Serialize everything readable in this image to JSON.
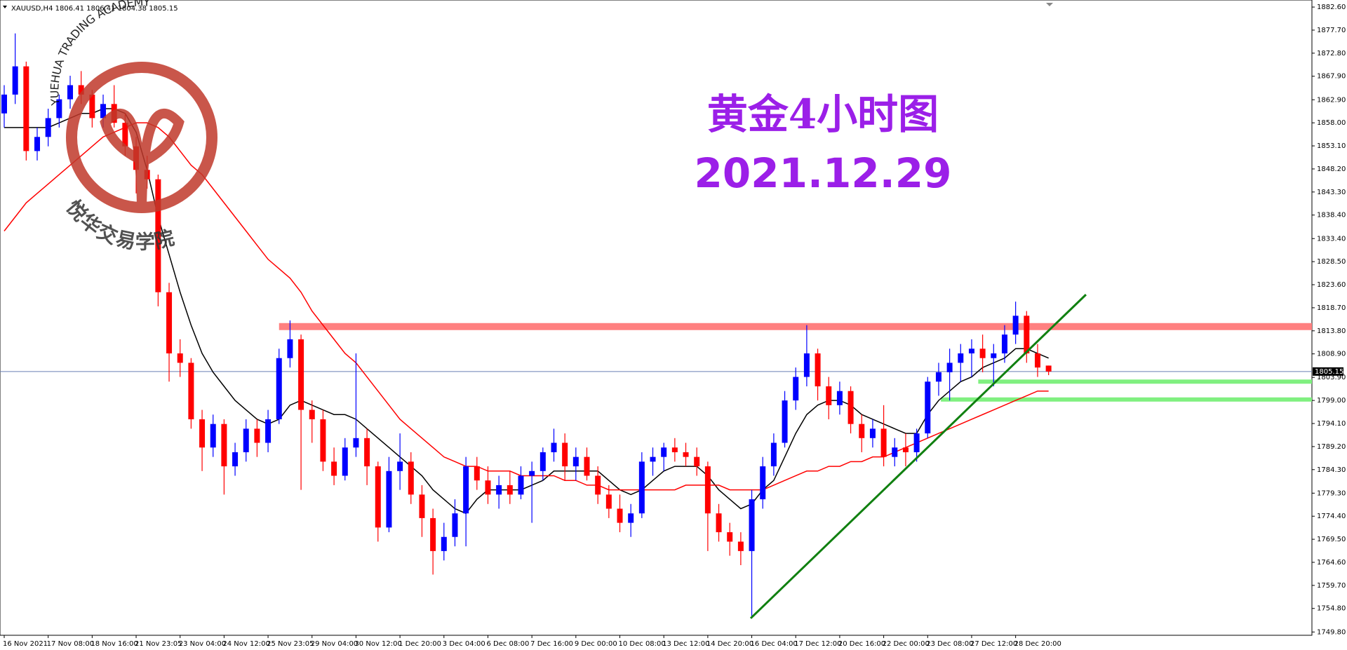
{
  "chart_data": {
    "type": "candlestick",
    "title": "XAUUSD,H4  1806.41 1806.41 1804.38 1805.15",
    "annotations": [
      "黄金4小时图",
      "2021.12.29"
    ],
    "watermark": [
      "YUEHUA TRADING ACADEMY",
      "悦华交易学院"
    ],
    "categories": [
      "16 Nov 2021",
      null,
      null,
      null,
      "17 Nov 08:00",
      null,
      null,
      null,
      "18 Nov 16:00",
      null,
      null,
      null,
      "21 Nov 23:05",
      null,
      null,
      null,
      "23 Nov 04:00",
      null,
      null,
      null,
      "24 Nov 12:00",
      null,
      null,
      null,
      "25 Nov 23:05",
      null,
      null,
      null,
      "29 Nov 04:00",
      null,
      null,
      null,
      "30 Nov 12:00",
      null,
      null,
      null,
      "1 Dec 20:00",
      null,
      null,
      null,
      "3 Dec 04:00",
      null,
      null,
      null,
      "6 Dec 08:00",
      null,
      null,
      null,
      "7 Dec 16:00",
      null,
      null,
      null,
      "9 Dec 00:00",
      null,
      null,
      null,
      "10 Dec 08:00",
      null,
      null,
      null,
      "13 Dec 12:00",
      null,
      null,
      null,
      "14 Dec 20:00",
      null,
      null,
      null,
      "16 Dec 04:00",
      null,
      null,
      null,
      "17 Dec 12:00",
      null,
      null,
      null,
      "20 Dec 16:00",
      null,
      null,
      null,
      "22 Dec 00:00",
      null,
      null,
      null,
      "23 Dec 08:00",
      null,
      null,
      null,
      "27 Dec 12:00",
      null,
      null,
      null,
      "28 Dec 20:00",
      null,
      null,
      null
    ],
    "ohlc": [
      [
        1860,
        1866,
        1857,
        1864
      ],
      [
        1864,
        1877,
        1862,
        1870
      ],
      [
        1870,
        1871,
        1850,
        1852
      ],
      [
        1852,
        1857,
        1850,
        1855
      ],
      [
        1855,
        1861,
        1853,
        1859
      ],
      [
        1859,
        1864,
        1857,
        1863
      ],
      [
        1863,
        1868,
        1861,
        1866
      ],
      [
        1866,
        1869,
        1862,
        1864
      ],
      [
        1864,
        1865,
        1857,
        1859
      ],
      [
        1859,
        1864,
        1857,
        1862
      ],
      [
        1862,
        1866,
        1857,
        1858
      ],
      [
        1858,
        1860,
        1851,
        1853
      ],
      [
        1853,
        1855,
        1843,
        1848
      ],
      [
        1848,
        1851,
        1844,
        1846
      ],
      [
        1846,
        1847,
        1819,
        1822
      ],
      [
        1822,
        1824,
        1803,
        1809
      ],
      [
        1809,
        1812,
        1804,
        1807
      ],
      [
        1807,
        1808,
        1793,
        1795
      ],
      [
        1795,
        1797,
        1784,
        1789
      ],
      [
        1789,
        1796,
        1787,
        1794
      ],
      [
        1794,
        1795,
        1779,
        1785
      ],
      [
        1785,
        1790,
        1783,
        1788
      ],
      [
        1788,
        1795,
        1786,
        1793
      ],
      [
        1793,
        1795,
        1787,
        1790
      ],
      [
        1790,
        1797,
        1788,
        1795
      ],
      [
        1795,
        1810,
        1794,
        1808
      ],
      [
        1808,
        1816,
        1806,
        1812
      ],
      [
        1812,
        1813,
        1780,
        1797
      ],
      [
        1797,
        1799,
        1790,
        1795
      ],
      [
        1795,
        1797,
        1784,
        1786
      ],
      [
        1786,
        1789,
        1781,
        1783
      ],
      [
        1783,
        1791,
        1782,
        1789
      ],
      [
        1789,
        1809,
        1787,
        1791
      ],
      [
        1791,
        1793,
        1781,
        1785
      ],
      [
        1785,
        1786,
        1769,
        1772
      ],
      [
        1772,
        1787,
        1771,
        1784
      ],
      [
        1784,
        1792,
        1780,
        1786
      ],
      [
        1786,
        1788,
        1777,
        1779
      ],
      [
        1779,
        1781,
        1770,
        1774
      ],
      [
        1774,
        1776,
        1762,
        1767
      ],
      [
        1767,
        1773,
        1765,
        1770
      ],
      [
        1770,
        1778,
        1768,
        1775
      ],
      [
        1775,
        1787,
        1768,
        1785
      ],
      [
        1785,
        1787,
        1780,
        1782
      ],
      [
        1782,
        1785,
        1777,
        1779
      ],
      [
        1779,
        1783,
        1776,
        1781
      ],
      [
        1781,
        1784,
        1777,
        1779
      ],
      [
        1779,
        1785,
        1778,
        1783
      ],
      [
        1783,
        1786,
        1773,
        1784
      ],
      [
        1784,
        1789,
        1782,
        1788
      ],
      [
        1788,
        1793,
        1786,
        1790
      ],
      [
        1790,
        1792,
        1782,
        1785
      ],
      [
        1785,
        1789,
        1782,
        1787
      ],
      [
        1787,
        1789,
        1782,
        1783
      ],
      [
        1783,
        1785,
        1777,
        1779
      ],
      [
        1779,
        1781,
        1774,
        1776
      ],
      [
        1776,
        1779,
        1771,
        1773
      ],
      [
        1773,
        1777,
        1770,
        1775
      ],
      [
        1775,
        1788,
        1774,
        1786
      ],
      [
        1786,
        1789,
        1783,
        1787
      ],
      [
        1787,
        1790,
        1784,
        1789
      ],
      [
        1789,
        1791,
        1786,
        1788
      ],
      [
        1788,
        1790,
        1785,
        1787
      ],
      [
        1787,
        1789,
        1783,
        1785
      ],
      [
        1785,
        1786,
        1767,
        1775
      ],
      [
        1775,
        1777,
        1769,
        1771
      ],
      [
        1771,
        1773,
        1766,
        1769
      ],
      [
        1769,
        1771,
        1764,
        1767
      ],
      [
        1767,
        1780,
        1753,
        1778
      ],
      [
        1778,
        1787,
        1776,
        1785
      ],
      [
        1785,
        1792,
        1783,
        1790
      ],
      [
        1790,
        1801,
        1789,
        1799
      ],
      [
        1799,
        1806,
        1797,
        1804
      ],
      [
        1804,
        1815,
        1802,
        1809
      ],
      [
        1809,
        1810,
        1799,
        1802
      ],
      [
        1802,
        1804,
        1795,
        1798
      ],
      [
        1798,
        1803,
        1796,
        1801
      ],
      [
        1801,
        1802,
        1792,
        1794
      ],
      [
        1794,
        1796,
        1788,
        1791
      ],
      [
        1791,
        1795,
        1789,
        1793
      ],
      [
        1793,
        1798,
        1785,
        1787
      ],
      [
        1787,
        1791,
        1785,
        1789
      ],
      [
        1789,
        1792,
        1785,
        1788
      ],
      [
        1788,
        1793,
        1786,
        1792
      ],
      [
        1792,
        1804,
        1791,
        1803
      ],
      [
        1803,
        1807,
        1800,
        1805
      ],
      [
        1805,
        1810,
        1799,
        1807
      ],
      [
        1807,
        1811,
        1803,
        1809
      ],
      [
        1809,
        1812,
        1804,
        1810
      ],
      [
        1810,
        1813,
        1805,
        1808
      ],
      [
        1808,
        1811,
        1802,
        1809
      ],
      [
        1809,
        1815,
        1807,
        1813
      ],
      [
        1813,
        1820,
        1811,
        1817
      ],
      [
        1817,
        1818,
        1807,
        1809
      ],
      [
        1809,
        1811,
        1804,
        1806
      ],
      [
        1806.41,
        1806.41,
        1804.38,
        1805.15
      ]
    ],
    "up_color": "#0000ff",
    "down_color": "#ff0000",
    "series": [
      {
        "color": "#000000",
        "values": [
          1857,
          1857,
          1857,
          1857,
          1857,
          1858,
          1859,
          1860,
          1860,
          1861,
          1861,
          1860,
          1856,
          1848,
          1838,
          1830,
          1822,
          1815,
          1809,
          1805,
          1802,
          1799,
          1797,
          1795,
          1794,
          1795,
          1798,
          1799,
          1798,
          1797,
          1796,
          1796,
          1795,
          1793,
          1791,
          1789,
          1787,
          1785,
          1783,
          1780,
          1778,
          1776,
          1775,
          1778,
          1780,
          1780,
          1780,
          1780,
          1781,
          1782,
          1784,
          1784,
          1784,
          1784,
          1784,
          1782,
          1780,
          1779,
          1780,
          1782,
          1784,
          1785,
          1785,
          1785,
          1783,
          1780,
          1778,
          1776,
          1777,
          1780,
          1782,
          1787,
          1792,
          1796,
          1798,
          1799,
          1799,
          1798,
          1796,
          1795,
          1794,
          1793,
          1792,
          1792,
          1796,
          1799,
          1801,
          1803,
          1804,
          1806,
          1807,
          1808,
          1810,
          1810,
          1809,
          1808
        ]
      },
      {
        "color": "#ff0000",
        "values": [
          1835,
          1838,
          1841,
          1843,
          1845,
          1847,
          1849,
          1851,
          1853,
          1855,
          1856,
          1857,
          1858,
          1858,
          1857,
          1855,
          1852,
          1849,
          1847,
          1844,
          1841,
          1838,
          1835,
          1832,
          1829,
          1827,
          1825,
          1822,
          1818,
          1815,
          1812,
          1809,
          1807,
          1804,
          1801,
          1798,
          1795,
          1793,
          1791,
          1789,
          1787,
          1786,
          1785,
          1785,
          1784,
          1784,
          1784,
          1783,
          1783,
          1783,
          1783,
          1782,
          1782,
          1781,
          1781,
          1780,
          1780,
          1780,
          1780,
          1780,
          1780,
          1780,
          1781,
          1781,
          1781,
          1781,
          1780,
          1780,
          1780,
          1780,
          1781,
          1782,
          1783,
          1784,
          1784,
          1785,
          1785,
          1786,
          1786,
          1787,
          1787,
          1788,
          1789,
          1790,
          1791,
          1792,
          1793,
          1794,
          1795,
          1796,
          1797,
          1798,
          1799,
          1800,
          1801,
          1801
        ]
      }
    ],
    "levels": [
      {
        "value": 1814.7,
        "from": 25,
        "color": "#ff8080"
      },
      {
        "value": 1803,
        "from": 88.6,
        "color": "#80f080"
      },
      {
        "value": 1799.2,
        "from": 85.2,
        "color": "#80f080"
      }
    ],
    "trendline": {
      "x": [
        67.9,
        98.4
      ],
      "y": [
        1752.7,
        1821.5
      ],
      "color": "#108010"
    },
    "last": 1805.15,
    "ylim": [
      1749.1,
      1884.1
    ],
    "yticks": [
      {
        "value": 1882.6,
        "label": "1882.60"
      },
      {
        "value": 1877.7,
        "label": "1877.70"
      },
      {
        "value": 1872.8,
        "label": "1872.80"
      },
      {
        "value": 1867.9,
        "label": "1867.90"
      },
      {
        "value": 1862.9,
        "label": "1862.90"
      },
      {
        "value": 1858,
        "label": "1858.00"
      },
      {
        "value": 1853.1,
        "label": "1853.10"
      },
      {
        "value": 1848.2,
        "label": "1848.20"
      },
      {
        "value": 1843.3,
        "label": "1843.30"
      },
      {
        "value": 1838.4,
        "label": "1838.40"
      },
      {
        "value": 1833.4,
        "label": "1833.40"
      },
      {
        "value": 1828.5,
        "label": "1828.50"
      },
      {
        "value": 1823.6,
        "label": "1823.60"
      },
      {
        "value": 1818.7,
        "label": "1818.70"
      },
      {
        "value": 1813.8,
        "label": "1813.80"
      },
      {
        "value": 1808.9,
        "label": "1808.90"
      },
      {
        "value": 1803.9,
        "label": "1803.90"
      },
      {
        "value": 1799,
        "label": "1799.00"
      },
      {
        "value": 1794.1,
        "label": "1794.10"
      },
      {
        "value": 1789.2,
        "label": "1789.20"
      },
      {
        "value": 1784.3,
        "label": "1784.30"
      },
      {
        "value": 1779.3,
        "label": "1779.30"
      },
      {
        "value": 1774.4,
        "label": "1774.40"
      },
      {
        "value": 1769.5,
        "label": "1769.50"
      },
      {
        "value": 1764.6,
        "label": "1764.60"
      },
      {
        "value": 1759.7,
        "label": "1759.70"
      },
      {
        "value": 1754.8,
        "label": "1754.80"
      },
      {
        "value": 1749.8,
        "label": "1749.80"
      }
    ]
  }
}
